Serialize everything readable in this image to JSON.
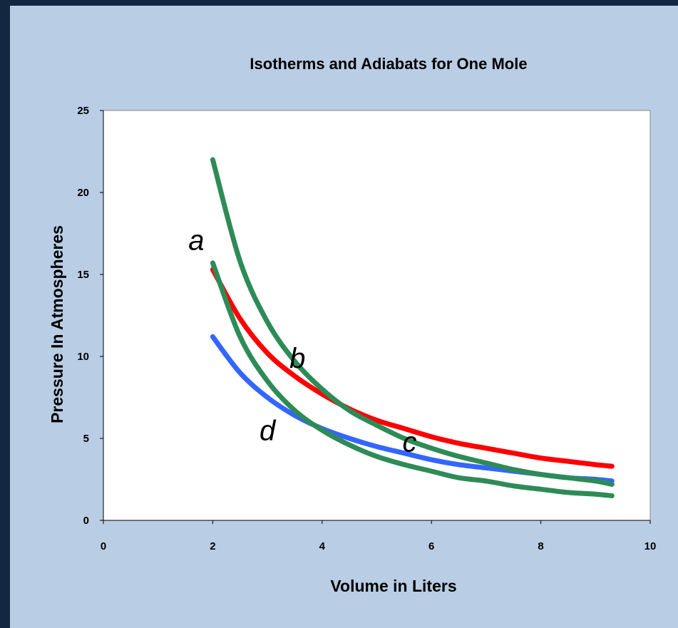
{
  "colors": {
    "background": "#b9cde4",
    "frame": "#132740",
    "isotherm_hot": "#ff0000",
    "isotherm_cold": "#3366ff",
    "adiabat": "#2e8b57"
  },
  "chart_data": {
    "type": "line",
    "title": "Isotherms and Adiabats for One Mole",
    "xlabel": "Volume in Liters",
    "ylabel": "Pressure In Atmospheres",
    "xlim": [
      0,
      10
    ],
    "ylim": [
      0,
      25
    ],
    "xticks": [
      "0",
      "2",
      "4",
      "6",
      "8",
      "10"
    ],
    "yticks": [
      "0",
      "5",
      "10",
      "15",
      "20",
      "25"
    ],
    "grid": false,
    "legend": "none",
    "series": [
      {
        "color": "#ff0000",
        "x": [
          2.0,
          2.5,
          3.0,
          3.5,
          4.0,
          4.5,
          5.0,
          5.5,
          6.0,
          6.5,
          7.0,
          7.5,
          8.0,
          8.5,
          9.0,
          9.3
        ],
        "values": [
          15.3,
          12.3,
          10.2,
          8.8,
          7.7,
          6.8,
          6.1,
          5.6,
          5.1,
          4.7,
          4.4,
          4.1,
          3.8,
          3.6,
          3.4,
          3.3
        ]
      },
      {
        "color": "#3366ff",
        "x": [
          2.0,
          2.5,
          3.0,
          3.5,
          4.0,
          4.5,
          5.0,
          5.5,
          6.0,
          6.5,
          7.0,
          7.5,
          8.0,
          8.5,
          9.0,
          9.3
        ],
        "values": [
          11.2,
          9.0,
          7.5,
          6.4,
          5.6,
          5.0,
          4.5,
          4.1,
          3.7,
          3.4,
          3.2,
          3.0,
          2.8,
          2.6,
          2.5,
          2.4
        ]
      },
      {
        "color": "#2e8b57",
        "x": [
          2.0,
          2.5,
          3.0,
          3.5,
          4.0,
          4.5,
          5.0,
          5.5,
          6.0,
          6.5,
          7.0,
          7.5,
          8.0,
          8.5,
          9.0,
          9.3
        ],
        "values": [
          22.0,
          15.8,
          12.1,
          9.7,
          8.0,
          6.7,
          5.8,
          5.0,
          4.4,
          3.9,
          3.5,
          3.1,
          2.8,
          2.6,
          2.4,
          2.2
        ]
      },
      {
        "color": "#2e8b57",
        "x": [
          2.0,
          2.5,
          3.0,
          3.5,
          4.0,
          4.5,
          5.0,
          5.5,
          6.0,
          6.5,
          7.0,
          7.5,
          8.0,
          8.5,
          9.0,
          9.3
        ],
        "values": [
          15.7,
          11.2,
          8.5,
          6.7,
          5.5,
          4.6,
          3.9,
          3.4,
          3.0,
          2.6,
          2.4,
          2.1,
          1.9,
          1.7,
          1.6,
          1.5
        ]
      }
    ],
    "annotations": [
      {
        "text": "a",
        "x": 1.7,
        "y": 16.5
      },
      {
        "text": "b",
        "x": 3.55,
        "y": 9.3
      },
      {
        "text": "c",
        "x": 5.6,
        "y": 4.2
      },
      {
        "text": "d",
        "x": 3.0,
        "y": 4.9
      }
    ]
  }
}
